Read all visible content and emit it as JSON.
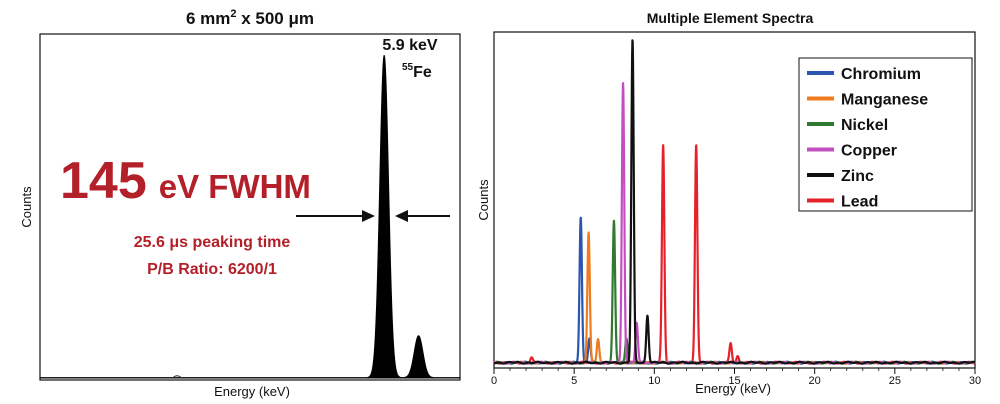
{
  "chart_data": [
    {
      "type": "line",
      "title_main": "6 mm",
      "title_sup": "2",
      "title_rest": " x 500 ",
      "title_unit": "μm",
      "xlabel": "Energy (keV)",
      "ylabel": "Counts",
      "peak_label": "5.9 keV",
      "isotope_sup": "55",
      "isotope": "Fe",
      "fwhm_number": "145",
      "fwhm_unit": "eV FWHM",
      "peaking_time": "25.6 μs peaking time",
      "pb_ratio": "P/B Ratio:  6200/1",
      "series": [
        {
          "color": "#000000",
          "peaks": [
            {
              "x": 5.9,
              "height": 1.0,
              "sigma": 0.075
            },
            {
              "x": 6.49,
              "height": 0.13,
              "sigma": 0.075
            }
          ]
        }
      ],
      "xlim": [
        0,
        7.2
      ],
      "ylim": [
        0,
        1.06
      ],
      "grid": false
    },
    {
      "type": "line",
      "title": "Multiple Element Spectra",
      "xlabel": "Energy (keV)",
      "ylabel": "Counts",
      "xlim": [
        0,
        30
      ],
      "ylim": [
        0,
        1.0
      ],
      "xticks": [
        0,
        5,
        10,
        15,
        20,
        25,
        30
      ],
      "grid": false,
      "legend_position": "top-right",
      "series": [
        {
          "name": "Chromium",
          "color": "#2a56b0",
          "peaks": [
            {
              "x": 5.41,
              "height": 0.445
            },
            {
              "x": 5.95,
              "height": 0.075
            }
          ]
        },
        {
          "name": "Manganese",
          "color": "#f07a1c",
          "peaks": [
            {
              "x": 5.9,
              "height": 0.395
            },
            {
              "x": 6.49,
              "height": 0.07
            }
          ]
        },
        {
          "name": "Nickel",
          "color": "#2f7a2f",
          "peaks": [
            {
              "x": 7.48,
              "height": 0.43
            },
            {
              "x": 8.26,
              "height": 0.075
            }
          ]
        },
        {
          "name": "Copper",
          "color": "#c24fc0",
          "peaks": [
            {
              "x": 8.05,
              "height": 0.855
            },
            {
              "x": 8.9,
              "height": 0.12
            }
          ]
        },
        {
          "name": "Zinc",
          "color": "#111111",
          "peaks": [
            {
              "x": 8.64,
              "height": 0.985
            },
            {
              "x": 9.57,
              "height": 0.145
            }
          ]
        },
        {
          "name": "Lead",
          "color": "#e52229",
          "peaks": [
            {
              "x": 2.34,
              "height": 0.015
            },
            {
              "x": 10.55,
              "height": 0.665
            },
            {
              "x": 12.61,
              "height": 0.665
            },
            {
              "x": 14.76,
              "height": 0.06
            },
            {
              "x": 15.2,
              "height": 0.02
            }
          ]
        }
      ]
    }
  ]
}
